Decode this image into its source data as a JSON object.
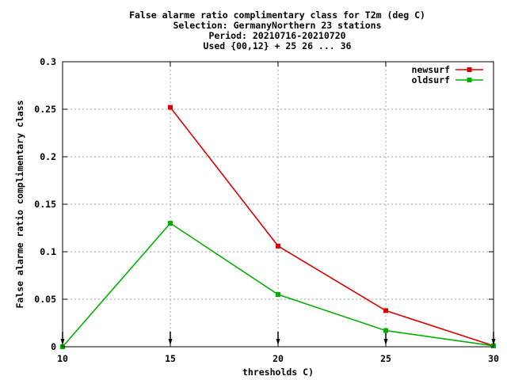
{
  "chart_data": {
    "type": "line",
    "title_lines": [
      "False alarme ratio complimentary class  for T2m (deg C)",
      "Selection: GermanyNorthern     23 stations",
      "Period: 20210716-20210720",
      "Used {00,12} + 25 26 ... 36"
    ],
    "xlabel": "thresholds C)",
    "ylabel": "False alarme ratio complimentary class",
    "x": [
      10,
      15,
      20,
      25,
      30
    ],
    "xlim": [
      10,
      30
    ],
    "ylim": [
      0,
      0.3
    ],
    "xticks": [
      "10",
      "15",
      "20",
      "25",
      "30"
    ],
    "yticks": [
      "0",
      "0.05",
      "0.1",
      "0.15",
      "0.2",
      "0.25",
      "0.3"
    ],
    "grid": true,
    "legend_position": "top-right",
    "series": [
      {
        "name": "newsurf",
        "color": "#dd0000",
        "values": [
          null,
          0.252,
          0.106,
          0.038,
          0.001
        ]
      },
      {
        "name": "oldsurf",
        "color": "#00b000",
        "values": [
          0.0,
          0.13,
          0.055,
          0.017,
          0.001
        ]
      }
    ]
  }
}
